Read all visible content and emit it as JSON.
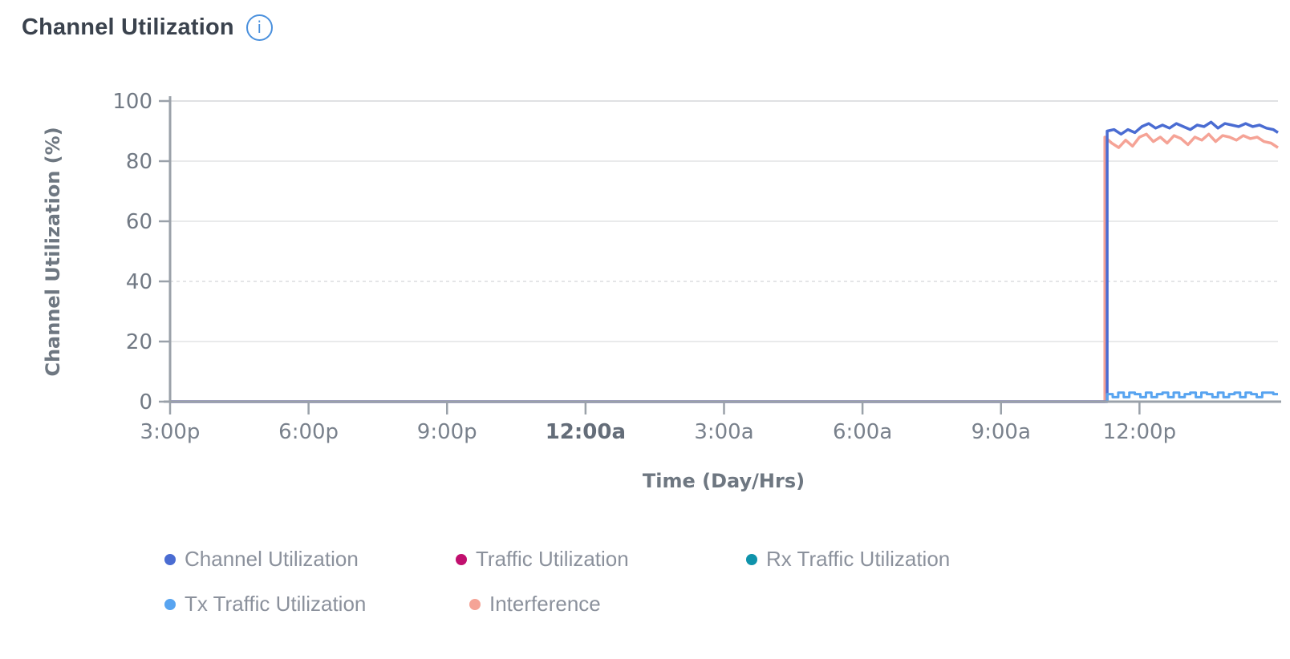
{
  "header": {
    "title": "Channel Utilization"
  },
  "icons": {
    "info": "i"
  },
  "chart_data": {
    "type": "line",
    "title": "Channel Utilization",
    "xlabel": "Time (Day/Hrs)",
    "ylabel": "Channel Utilization (%)",
    "ylim": [
      0,
      100
    ],
    "x_domain_hours": [
      0,
      24
    ],
    "x_window": "3:00p to ~3:00p next day (24 hrs)",
    "grid": "horizontal",
    "legend_position": "bottom",
    "y_ticks": [
      {
        "v": 0,
        "label": "0"
      },
      {
        "v": 20,
        "label": "20"
      },
      {
        "v": 40,
        "label": "40",
        "dashed": true
      },
      {
        "v": 60,
        "label": "60"
      },
      {
        "v": 80,
        "label": "80"
      },
      {
        "v": 100,
        "label": "100"
      }
    ],
    "x_ticks": [
      {
        "h": 0,
        "label": "3:00p"
      },
      {
        "h": 3,
        "label": "6:00p"
      },
      {
        "h": 6,
        "label": "9:00p"
      },
      {
        "h": 9,
        "label": "12:00a",
        "bold": true
      },
      {
        "h": 12,
        "label": "3:00a"
      },
      {
        "h": 15,
        "label": "6:00a"
      },
      {
        "h": 18,
        "label": "9:00a"
      },
      {
        "h": 21,
        "label": "12:00p"
      }
    ],
    "draw_order": [
      1,
      2,
      4,
      0,
      3
    ],
    "legend_rows": [
      [
        0,
        1,
        2
      ],
      [
        3,
        4
      ]
    ],
    "series": [
      {
        "name": "Channel Utilization",
        "color": "#4a6cd2",
        "width": 3.5,
        "points": [
          [
            0,
            0
          ],
          [
            20.3,
            0
          ],
          [
            20.3,
            90
          ],
          [
            20.45,
            90.5
          ],
          [
            20.6,
            89
          ],
          [
            20.75,
            90.5
          ],
          [
            20.9,
            89.5
          ],
          [
            21.05,
            91.5
          ],
          [
            21.2,
            92.5
          ],
          [
            21.35,
            91
          ],
          [
            21.5,
            92
          ],
          [
            21.65,
            91
          ],
          [
            21.8,
            92.5
          ],
          [
            21.95,
            91.5
          ],
          [
            22.1,
            90.5
          ],
          [
            22.25,
            92
          ],
          [
            22.4,
            91.5
          ],
          [
            22.55,
            93
          ],
          [
            22.7,
            91
          ],
          [
            22.85,
            92.5
          ],
          [
            23.0,
            92
          ],
          [
            23.15,
            91.5
          ],
          [
            23.3,
            92.5
          ],
          [
            23.45,
            91.5
          ],
          [
            23.6,
            92
          ],
          [
            23.75,
            91
          ],
          [
            23.9,
            90.5
          ],
          [
            24,
            89.5
          ]
        ]
      },
      {
        "name": "Traffic Utilization",
        "color": "#c10f6e",
        "width": 3,
        "points": [
          [
            0,
            0
          ],
          [
            24,
            0
          ]
        ]
      },
      {
        "name": "Rx Traffic Utilization",
        "color": "#0f93ab",
        "width": 3,
        "points": [
          [
            0,
            0
          ],
          [
            24,
            0
          ]
        ]
      },
      {
        "name": "Tx Traffic Utilization",
        "color": "#58a4f0",
        "width": 3,
        "points": [
          [
            0,
            0
          ],
          [
            20.3,
            0
          ]
        ],
        "steps": {
          "start": 20.3,
          "dx": 0.12
        },
        "values": [
          2.5,
          1.5,
          3,
          1.5,
          3,
          2.5,
          1.5,
          3,
          1.5,
          2.5,
          3,
          1.5,
          3,
          1.5,
          2.5,
          3,
          1.5,
          3,
          2.5,
          1.5,
          3,
          1.5,
          2.5,
          3,
          1.5,
          3,
          2.5,
          1.5,
          3,
          3,
          2.5
        ]
      },
      {
        "name": "Interference",
        "color": "#f5a396",
        "width": 3.5,
        "points": [
          [
            0,
            0
          ],
          [
            20.25,
            0
          ],
          [
            20.25,
            88
          ],
          [
            20.4,
            86
          ],
          [
            20.55,
            84.5
          ],
          [
            20.7,
            87
          ],
          [
            20.85,
            85
          ],
          [
            21.0,
            88
          ],
          [
            21.15,
            89
          ],
          [
            21.3,
            86.5
          ],
          [
            21.45,
            88
          ],
          [
            21.6,
            86
          ],
          [
            21.75,
            88.5
          ],
          [
            21.9,
            87.5
          ],
          [
            22.05,
            85.5
          ],
          [
            22.2,
            88
          ],
          [
            22.35,
            87
          ],
          [
            22.5,
            89
          ],
          [
            22.65,
            86.5
          ],
          [
            22.8,
            88.5
          ],
          [
            22.95,
            88
          ],
          [
            23.1,
            87
          ],
          [
            23.25,
            88.5
          ],
          [
            23.4,
            87.5
          ],
          [
            23.55,
            88
          ],
          [
            23.7,
            86.5
          ],
          [
            23.85,
            86
          ],
          [
            24,
            84.5
          ]
        ]
      }
    ],
    "annotations": {
      "event": "All series flat at 0 until ~11:15a, then Channel Utilization rises to ~89-93% and Interference to ~84-89%; Tx Traffic steps between ~1.5-3%"
    }
  }
}
